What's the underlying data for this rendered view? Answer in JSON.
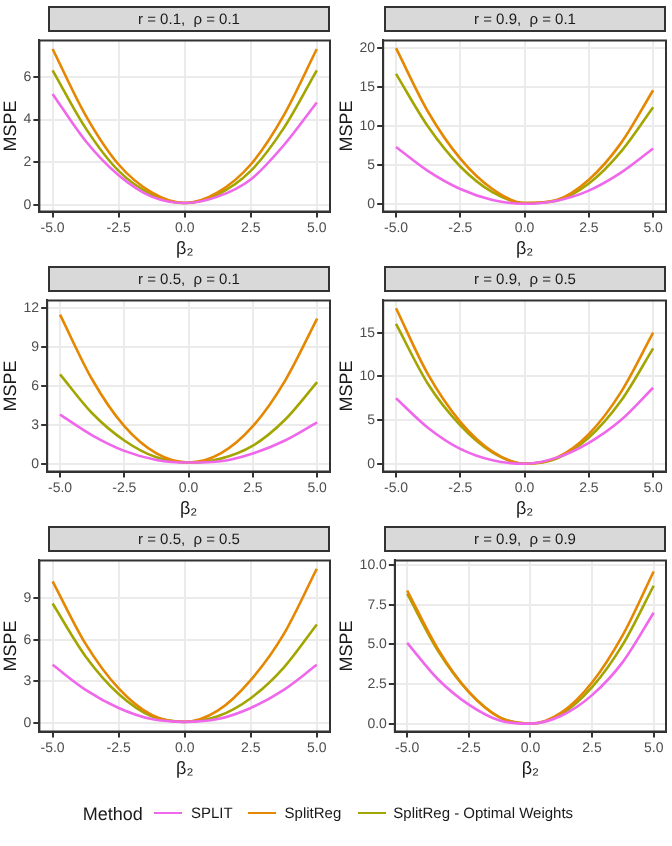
{
  "chart_data": [
    {
      "type": "line",
      "title": "r = 0.1,  ρ = 0.1",
      "xlabel": "β₂",
      "ylabel": "MSPE",
      "legend_title": "Method",
      "x": [
        -5,
        -3.75,
        -2.5,
        -1.25,
        0,
        1.25,
        2.5,
        3.75,
        5
      ],
      "xlim": [
        -5.5,
        5.5
      ],
      "xticks": [
        {
          "value": -5,
          "label": "-5.0"
        },
        {
          "value": -2.5,
          "label": "-2.5"
        },
        {
          "value": 0,
          "label": "0.0"
        },
        {
          "value": 2.5,
          "label": "2.5"
        },
        {
          "value": 5,
          "label": "5.0"
        }
      ],
      "ylim": [
        -0.3,
        7.7
      ],
      "yticks": [
        0,
        2,
        4,
        6
      ],
      "grid": true,
      "legend": "bottom",
      "marker": "none",
      "line_style": "solid",
      "series": [
        {
          "name": "SPLIT",
          "color": "#ef67eb",
          "values": [
            5.2,
            3.0,
            1.4,
            0.4,
            0.1,
            0.4,
            1.2,
            2.8,
            4.8
          ]
        },
        {
          "name": "SplitReg",
          "color": "#e58700",
          "values": [
            7.3,
            4.2,
            1.9,
            0.6,
            0.1,
            0.6,
            1.9,
            4.2,
            7.3
          ]
        },
        {
          "name": "SplitReg - Optimal Weights",
          "color": "#a3a500",
          "values": [
            6.3,
            3.6,
            1.6,
            0.5,
            0.1,
            0.5,
            1.6,
            3.6,
            6.3
          ]
        }
      ]
    },
    {
      "type": "line",
      "title": "r = 0.9,  ρ = 0.1",
      "xlabel": "β₂",
      "ylabel": "MSPE",
      "x": [
        -5,
        -3.75,
        -2.5,
        -1.25,
        0,
        1.25,
        2.5,
        3.75,
        5
      ],
      "xlim": [
        -5.5,
        5.5
      ],
      "xticks": [
        {
          "value": -5,
          "label": "-5.0"
        },
        {
          "value": -2.5,
          "label": "-2.5"
        },
        {
          "value": 0,
          "label": "0.0"
        },
        {
          "value": 2.5,
          "label": "2.5"
        },
        {
          "value": 5,
          "label": "5.0"
        }
      ],
      "ylim": [
        -1,
        21
      ],
      "yticks": [
        0,
        5,
        10,
        15,
        20
      ],
      "grid": true,
      "marker": "none",
      "line_style": "solid",
      "series": [
        {
          "color": "#ef67eb",
          "values": [
            7.3,
            4.2,
            1.9,
            0.5,
            0.0,
            0.4,
            1.7,
            4.0,
            7.1
          ]
        },
        {
          "color": "#e58700",
          "values": [
            20,
            11.8,
            5.8,
            1.9,
            0.1,
            0.5,
            3.1,
            7.8,
            14.6
          ]
        },
        {
          "color": "#a3a500",
          "values": [
            16.7,
            9.9,
            4.8,
            1.5,
            0.1,
            0.4,
            2.6,
            6.7,
            12.4
          ]
        }
      ]
    },
    {
      "type": "line",
      "title": "r = 0.5,  ρ = 0.1",
      "xlabel": "β₂",
      "ylabel": "MSPE",
      "x": [
        -5,
        -3.75,
        -2.5,
        -1.25,
        0,
        1.25,
        2.5,
        3.75,
        5
      ],
      "xlim": [
        -5.5,
        5.5
      ],
      "xticks": [
        {
          "value": -5,
          "label": "-5.0"
        },
        {
          "value": -2.5,
          "label": "-2.5"
        },
        {
          "value": 0,
          "label": "0.0"
        },
        {
          "value": 2.5,
          "label": "2.5"
        },
        {
          "value": 5,
          "label": "5.0"
        }
      ],
      "ylim": [
        -0.6,
        12.6
      ],
      "yticks": [
        0,
        3,
        6,
        9,
        12
      ],
      "grid": true,
      "marker": "none",
      "line_style": "solid",
      "series": [
        {
          "color": "#ef67eb",
          "values": [
            3.8,
            2.2,
            1.0,
            0.3,
            0.1,
            0.2,
            0.8,
            1.8,
            3.2
          ]
        },
        {
          "color": "#e58700",
          "values": [
            11.5,
            6.5,
            2.9,
            0.8,
            0.1,
            0.8,
            2.9,
            6.4,
            11.2
          ]
        },
        {
          "color": "#a3a500",
          "values": [
            6.9,
            3.9,
            1.8,
            0.5,
            0.1,
            0.4,
            1.4,
            3.4,
            6.3
          ]
        }
      ]
    },
    {
      "type": "line",
      "title": "r = 0.9,  ρ = 0.5",
      "xlabel": "β₂",
      "ylabel": "MSPE",
      "x": [
        -5,
        -3.75,
        -2.5,
        -1.25,
        0,
        1.25,
        2.5,
        3.75,
        5
      ],
      "xlim": [
        -5.5,
        5.5
      ],
      "xticks": [
        {
          "value": -5,
          "label": "-5.0"
        },
        {
          "value": -2.5,
          "label": "-2.5"
        },
        {
          "value": 0,
          "label": "0.0"
        },
        {
          "value": 2.5,
          "label": "2.5"
        },
        {
          "value": 5,
          "label": "5.0"
        }
      ],
      "ylim": [
        -0.9,
        18.7
      ],
      "yticks": [
        0,
        5,
        10,
        15
      ],
      "grid": true,
      "marker": "none",
      "line_style": "solid",
      "series": [
        {
          "color": "#ef67eb",
          "values": [
            7.5,
            4.1,
            1.7,
            0.4,
            0.0,
            0.7,
            2.4,
            5.0,
            8.7
          ]
        },
        {
          "color": "#e58700",
          "values": [
            17.8,
            10.2,
            4.8,
            1.4,
            0.0,
            0.7,
            3.4,
            8.2,
            15.0
          ]
        },
        {
          "color": "#a3a500",
          "values": [
            16.0,
            9.1,
            4.4,
            1.3,
            0.0,
            0.6,
            3.0,
            7.2,
            13.2
          ]
        }
      ]
    },
    {
      "type": "line",
      "title": "r = 0.5,  ρ = 0.5",
      "xlabel": "β₂",
      "ylabel": "MSPE",
      "x": [
        -5,
        -3.75,
        -2.5,
        -1.25,
        0,
        1.25,
        2.5,
        3.75,
        5
      ],
      "xlim": [
        -5.5,
        5.5
      ],
      "xticks": [
        {
          "value": -5,
          "label": "-5.0"
        },
        {
          "value": -2.5,
          "label": "-2.5"
        },
        {
          "value": 0,
          "label": "0.0"
        },
        {
          "value": 2.5,
          "label": "2.5"
        },
        {
          "value": 5,
          "label": "5.0"
        }
      ],
      "ylim": [
        -0.6,
        11.7
      ],
      "yticks": [
        0,
        3,
        6,
        9
      ],
      "grid": true,
      "marker": "none",
      "line_style": "solid",
      "series": [
        {
          "color": "#ef67eb",
          "values": [
            4.2,
            2.4,
            1.1,
            0.3,
            0.1,
            0.3,
            1.1,
            2.4,
            4.2
          ]
        },
        {
          "color": "#e58700",
          "values": [
            10.2,
            5.7,
            2.5,
            0.6,
            0.1,
            0.9,
            3.1,
            6.4,
            11.1
          ]
        },
        {
          "color": "#a3a500",
          "values": [
            8.6,
            4.8,
            2.1,
            0.5,
            0.1,
            0.5,
            1.8,
            4.0,
            7.1
          ]
        }
      ]
    },
    {
      "type": "line",
      "title": "r = 0.9,  ρ = 0.9",
      "xlabel": "β₂",
      "ylabel": "MSPE",
      "x": [
        -5,
        -3.75,
        -2.5,
        -1.25,
        0,
        1.25,
        2.5,
        3.75,
        5
      ],
      "xlim": [
        -5.5,
        5.5
      ],
      "xticks": [
        {
          "value": -5,
          "label": "-5.0"
        },
        {
          "value": -2.5,
          "label": "-2.5"
        },
        {
          "value": 0,
          "label": "0.0"
        },
        {
          "value": 2.5,
          "label": "2.5"
        },
        {
          "value": 5,
          "label": "5.0"
        }
      ],
      "ylim": [
        -0.5,
        10.3
      ],
      "yticks": [
        {
          "value": 0,
          "label": "0.0"
        },
        {
          "value": 2.5,
          "label": "2.5"
        },
        {
          "value": 5,
          "label": "5.0"
        },
        {
          "value": 7.5,
          "label": "7.5"
        },
        {
          "value": 10,
          "label": "10.0"
        }
      ],
      "grid": true,
      "marker": "none",
      "line_style": "solid",
      "series": [
        {
          "color": "#ef67eb",
          "values": [
            5.1,
            2.8,
            1.2,
            0.2,
            0.0,
            0.5,
            1.8,
            3.9,
            7.0
          ]
        },
        {
          "color": "#e58700",
          "values": [
            8.4,
            4.7,
            2.0,
            0.4,
            0.0,
            0.7,
            2.6,
            5.6,
            9.6
          ]
        },
        {
          "color": "#a3a500",
          "values": [
            8.2,
            4.6,
            2.0,
            0.4,
            0.0,
            0.6,
            2.3,
            5.0,
            8.7
          ]
        }
      ]
    }
  ]
}
